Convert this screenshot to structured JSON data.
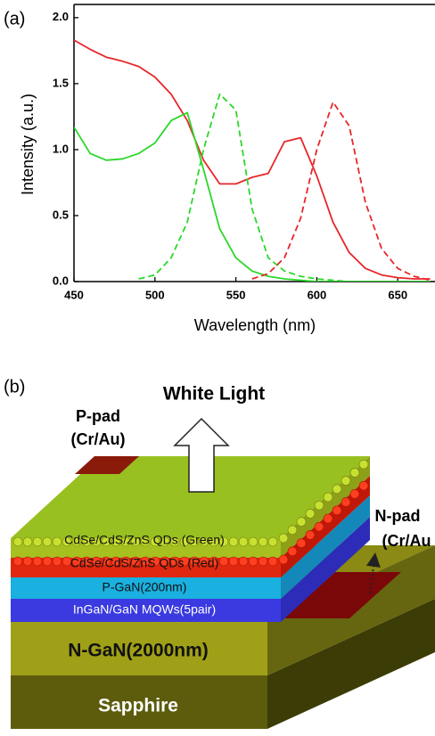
{
  "chart_data": {
    "type": "line",
    "panel_label": "(a)",
    "x_label": "Wavelength (nm)",
    "y_label": "Intensity (a.u.)",
    "x": [
      450,
      460,
      470,
      480,
      490,
      500,
      510,
      520,
      530,
      540,
      550,
      560,
      570,
      580,
      590,
      600,
      610,
      620,
      630,
      640,
      650,
      660,
      670
    ],
    "series": [
      {
        "color": "#e8262a",
        "dash": false,
        "values": [
          1.83,
          1.76,
          1.7,
          1.67,
          1.63,
          1.55,
          1.42,
          1.22,
          0.92,
          0.74,
          0.74,
          0.79,
          0.82,
          1.06,
          1.09,
          0.8,
          0.45,
          0.22,
          0.1,
          0.05,
          0.03,
          0.02,
          0.02
        ]
      },
      {
        "color": "#2ad82a",
        "dash": false,
        "values": [
          1.17,
          0.97,
          0.92,
          0.93,
          0.97,
          1.05,
          1.22,
          1.28,
          0.85,
          0.4,
          0.18,
          0.08,
          0.04,
          0.02,
          0.01,
          0,
          0,
          0,
          0,
          0,
          0,
          0,
          0
        ]
      },
      {
        "color": "#2ad82a",
        "dash": true,
        "values": [
          null,
          null,
          null,
          null,
          0.02,
          0.05,
          0.18,
          0.45,
          1.0,
          1.42,
          1.3,
          0.55,
          0.18,
          0.08,
          0.04,
          0.02,
          0.01,
          0,
          0,
          0,
          0,
          0,
          0
        ]
      },
      {
        "color": "#e8262a",
        "dash": true,
        "values": [
          null,
          null,
          null,
          null,
          null,
          null,
          null,
          null,
          null,
          null,
          null,
          0.02,
          0.06,
          0.18,
          0.48,
          1.0,
          1.36,
          1.18,
          0.6,
          0.25,
          0.1,
          0.04,
          0.01
        ]
      }
    ],
    "xlim": [
      450,
      673
    ],
    "ylim": [
      0,
      2.1
    ],
    "xticks": [
      450,
      500,
      550,
      600,
      650
    ],
    "yticks": [
      {
        "value": 0,
        "label": "0.0"
      },
      0.5,
      {
        "value": 1,
        "label": "1.0"
      },
      1.5,
      {
        "value": 2,
        "label": "2.0"
      }
    ]
  },
  "diagram": {
    "panel_label": "(b)",
    "arrow_label": "White Light",
    "p_pad": [
      "P-pad",
      "(Cr/Au)"
    ],
    "n_pad": [
      "N-pad",
      "(Cr/Au"
    ],
    "layers": [
      "CdSe/CdS/ZnS QDs (Green)",
      "CdSe/CdS/ZnS QDs (Red)",
      "P-GaN(200nm)",
      "InGaN/GaN MQWs(5pair)",
      "N-GaN(2000nm)",
      "Sapphire"
    ]
  }
}
